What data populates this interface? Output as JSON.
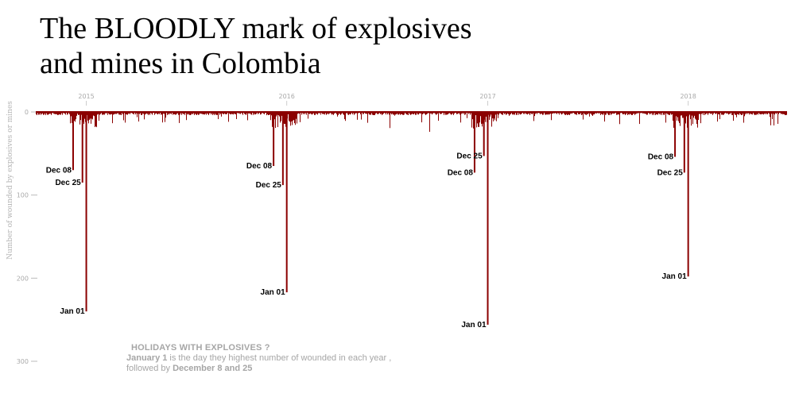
{
  "title_line1": "The BLOODLY mark of explosives",
  "title_line2": "and mines in Colombia",
  "note": {
    "heading": "HOLIDAYS WITH EXPLOSIVES ?",
    "line1_bold": "January 1",
    "line1_rest": " is the day they highest number of wounded in each year ,",
    "line2_start": "followed by ",
    "line2_bold": "December 8 and 25"
  },
  "chart_data": {
    "type": "bar",
    "ylabel": "Number of  wounded by explosives or mines",
    "ylim": [
      0,
      300
    ],
    "y_inverted": true,
    "xlim": [
      "2014-10-01",
      "2018-06-30"
    ],
    "y_ticks": [
      0,
      100,
      200,
      300
    ],
    "x_ticks": [
      {
        "date": "2015-01-01",
        "label": "2015"
      },
      {
        "date": "2016-01-01",
        "label": "2016"
      },
      {
        "date": "2017-01-01",
        "label": "2017"
      },
      {
        "date": "2018-01-01",
        "label": "2018"
      }
    ],
    "bar_color": "#8b0000",
    "peaks": [
      {
        "date": "2014-12-08",
        "value": 70,
        "label": "Dec 08"
      },
      {
        "date": "2014-12-25",
        "value": 85,
        "label": "Dec 25"
      },
      {
        "date": "2015-01-01",
        "value": 240,
        "label": "Jan 01"
      },
      {
        "date": "2015-12-08",
        "value": 65,
        "label": "Dec 08"
      },
      {
        "date": "2015-12-25",
        "value": 88,
        "label": "Dec 25"
      },
      {
        "date": "2016-01-01",
        "value": 217,
        "label": "Jan 01"
      },
      {
        "date": "2016-12-08",
        "value": 73,
        "label": "Dec 08"
      },
      {
        "date": "2016-12-25",
        "value": 53,
        "label": "Dec 25"
      },
      {
        "date": "2017-01-01",
        "value": 256,
        "label": "Jan 01"
      },
      {
        "date": "2017-12-08",
        "value": 54,
        "label": "Dec 08"
      },
      {
        "date": "2017-12-25",
        "value": 73,
        "label": "Dec 25"
      },
      {
        "date": "2018-01-01",
        "value": 198,
        "label": "Jan 01"
      }
    ]
  }
}
